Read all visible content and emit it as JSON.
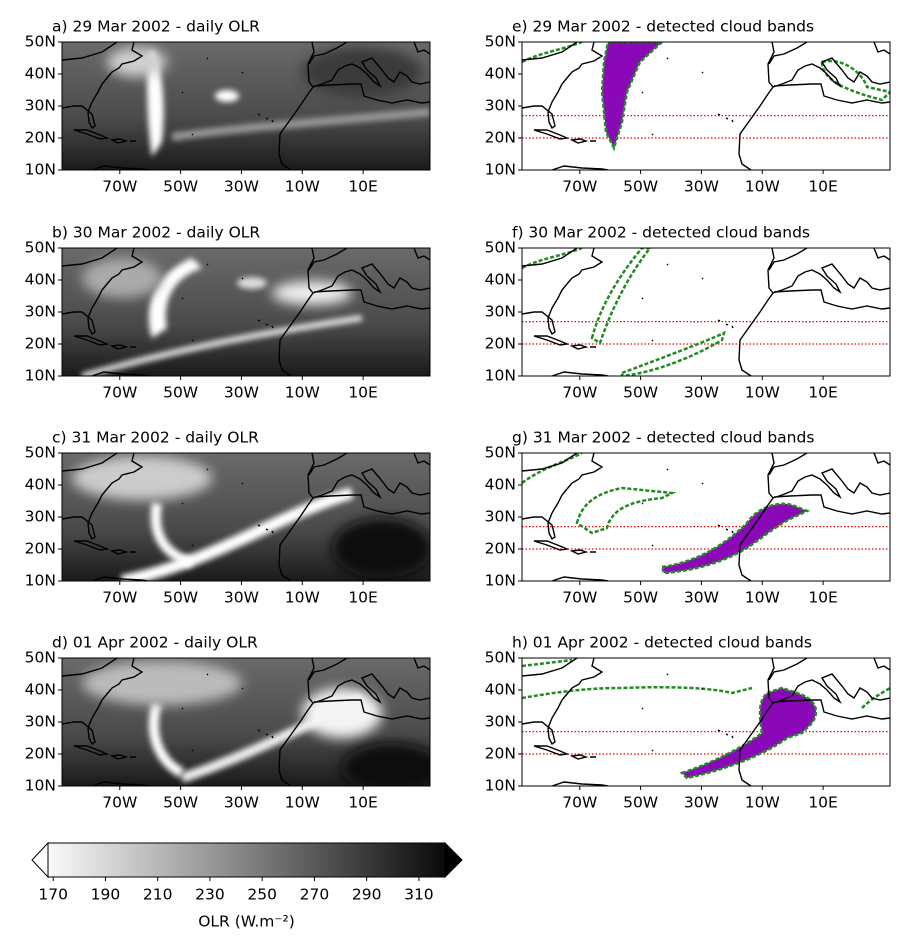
{
  "panels": [
    {
      "title": "a) 29 Mar 2002 - daily OLR"
    },
    {
      "title": "b) 30 Mar 2002 - daily OLR"
    },
    {
      "title": "c) 31 Mar 2002 - daily OLR"
    },
    {
      "title": "d) 01 Apr 2002 - daily OLR"
    },
    {
      "title": "e) 29 Mar 2002 - detected cloud bands"
    },
    {
      "title": "f) 30 Mar 2002 - detected cloud bands"
    },
    {
      "title": "g) 31 Mar 2002 - detected cloud bands"
    },
    {
      "title": "h) 01 Apr 2002 - detected cloud bands"
    }
  ],
  "lon_lim": [
    -89,
    32
  ],
  "lat_lim": [
    10,
    50
  ],
  "lon_ticks": [
    {
      "value": -70,
      "label": "70W"
    },
    {
      "value": -50,
      "label": "50W"
    },
    {
      "value": -30,
      "label": "30W"
    },
    {
      "value": -10,
      "label": "10W"
    },
    {
      "value": 10,
      "label": "10E"
    }
  ],
  "lat_ticks": [
    {
      "value": 10,
      "label": "10N"
    },
    {
      "value": 20,
      "label": "20N"
    },
    {
      "value": 30,
      "label": "30N"
    },
    {
      "value": 40,
      "label": "40N"
    },
    {
      "value": 50,
      "label": "50N"
    }
  ],
  "band_lats": [
    20,
    27
  ],
  "colorbar": {
    "label": "OLR (W.m⁻²)",
    "lim": [
      168,
      320
    ],
    "ticks": [
      170,
      190,
      210,
      230,
      250,
      270,
      290,
      310
    ]
  }
}
